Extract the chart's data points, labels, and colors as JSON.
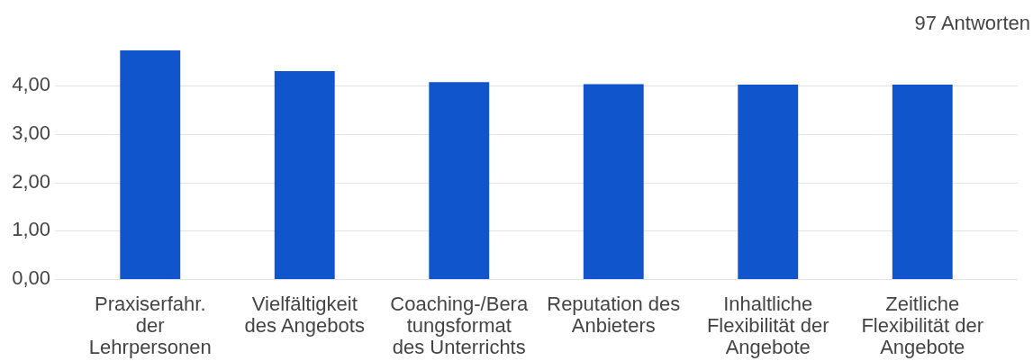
{
  "chart_data": {
    "type": "bar",
    "annotations": [
      "97 Antworten"
    ],
    "categories": [
      "Praxiserfahr.\nder\nLehrpersonen",
      "Vielfältigkeit\ndes Angebots",
      "Coaching-/Bera\ntungsformat\ndes Unterrichts",
      "Reputation des\nAnbieters",
      "Inhaltliche\nFlexibilität der\nAngebote",
      "Zeitliche\nFlexibilität der\nAngebote"
    ],
    "values": [
      4.73,
      4.3,
      4.07,
      4.03,
      4.02,
      4.02
    ],
    "color": "#1155cc",
    "ylim": [
      0,
      4.73
    ],
    "yticks": [
      {
        "value": 0,
        "label": "0,00"
      },
      {
        "value": 1,
        "label": "1,00"
      },
      {
        "value": 2,
        "label": "2,00"
      },
      {
        "value": 3,
        "label": "3,00"
      },
      {
        "value": 4,
        "label": "4,00"
      }
    ],
    "grid": "y"
  }
}
